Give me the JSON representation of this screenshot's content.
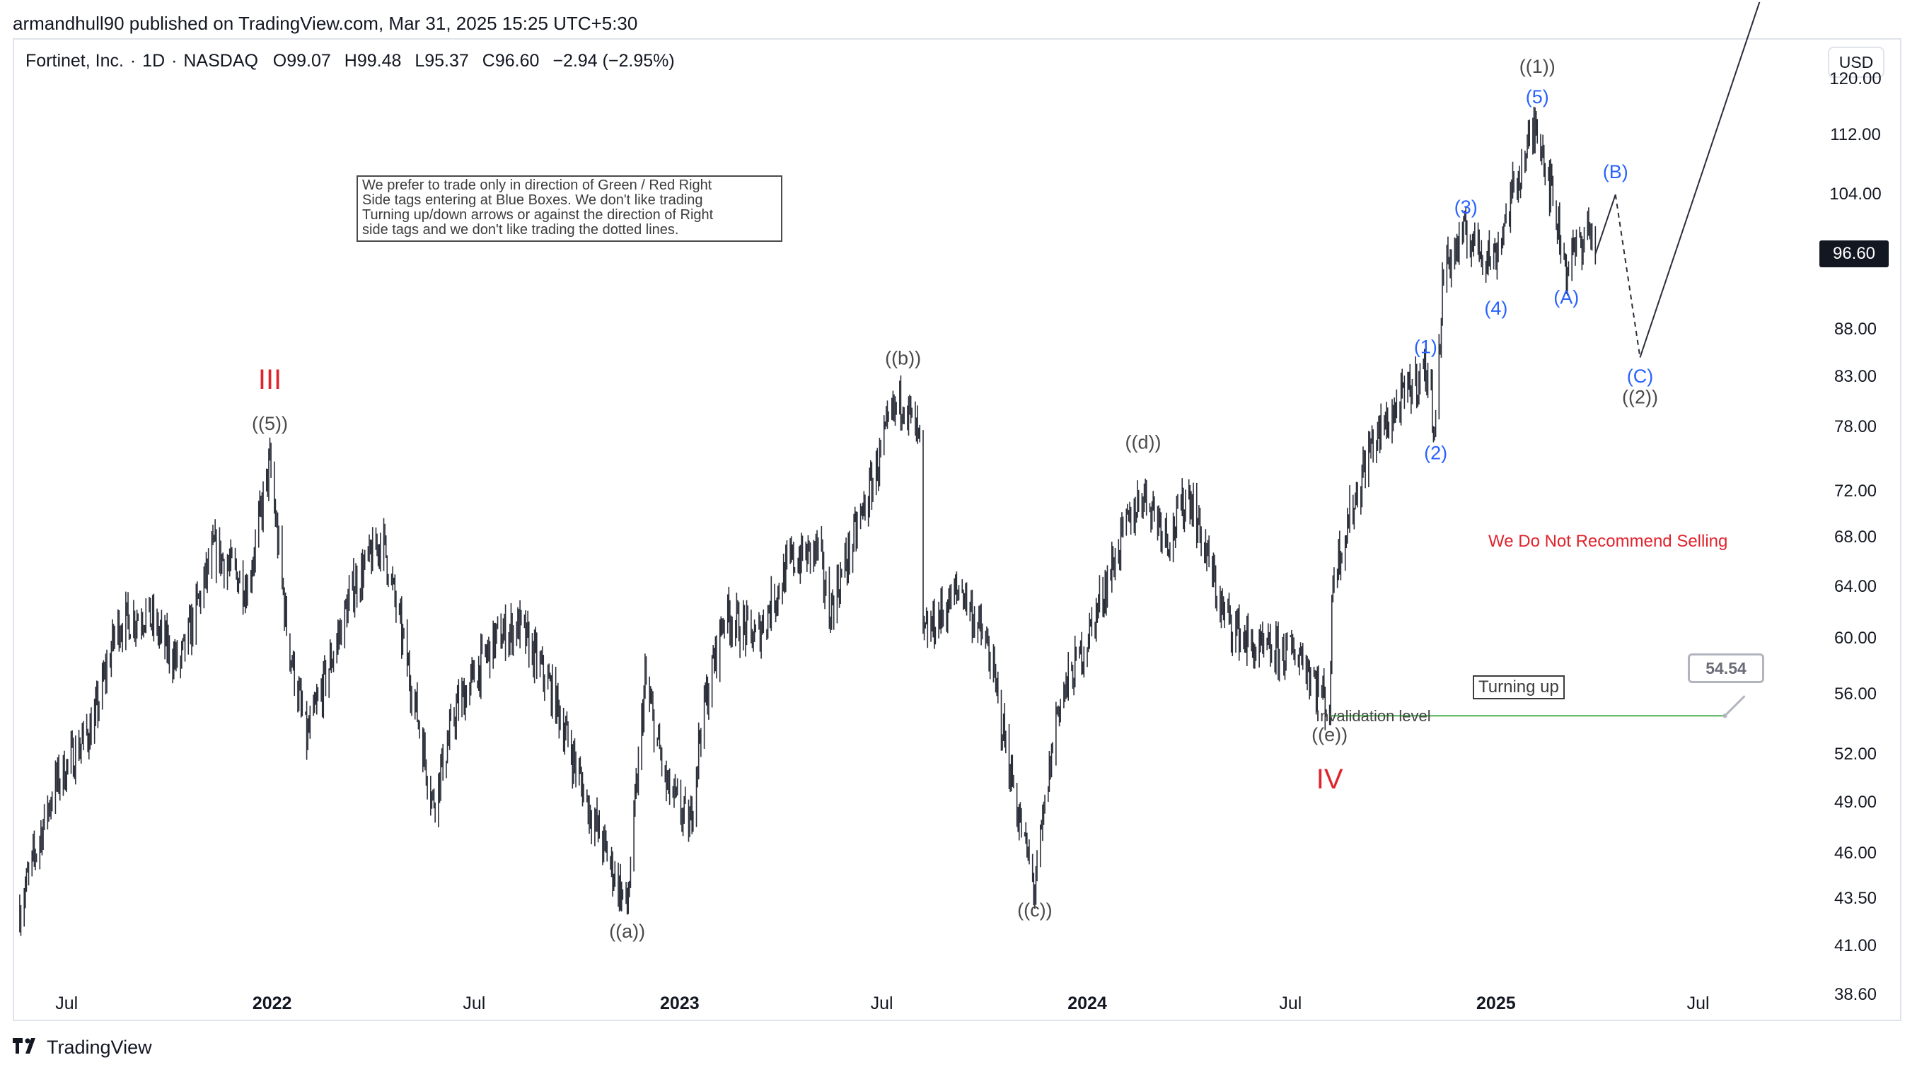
{
  "attribution": "armandhull90 published on TradingView.com, Mar 31, 2025 15:25 UTC+5:30",
  "legend": {
    "symbol": "Fortinet, Inc.",
    "interval": "1D",
    "exchange": "NASDAQ",
    "open_label": "O",
    "open": "99.07",
    "high_label": "H",
    "high": "99.48",
    "low_label": "L",
    "low": "95.37",
    "close_label": "C",
    "close": "96.60",
    "change": "−2.94 (−2.95%)"
  },
  "currency": "USD",
  "last_price": "96.60",
  "brand": "TradingView",
  "note_lines": [
    "We prefer to trade only in direction of Green / Red Right",
    "Side tags entering at Blue Boxes. We don't like trading",
    "Turning up/down arrows or against the direction of Right",
    "side tags and we don't like trading the dotted lines."
  ],
  "recommend_text": "We Do Not Recommend Selling",
  "turning_up": "Turning up",
  "invalidation_text": "Invalidation level",
  "invalidation_value": "54.54",
  "colors": {
    "candles": "#2a2e39",
    "blue_wave": "#2962ff",
    "red_wave": "#e0242e",
    "grey_wave": "#4a4a4a",
    "invalidation_line": "#4caf50"
  },
  "chart_data": {
    "type": "candlestick",
    "title": "Fortinet, Inc. · 1D · NASDAQ",
    "scale": "log",
    "ylim": [
      37.5,
      126
    ],
    "y_ticks": [
      "120.00",
      "112.00",
      "104.00",
      "88.00",
      "83.00",
      "78.00",
      "72.00",
      "68.00",
      "64.00",
      "60.00",
      "56.00",
      "52.00",
      "49.00",
      "46.00",
      "43.50",
      "41.00",
      "38.60"
    ],
    "x_ticks": [
      {
        "label": "Jul",
        "date": "2021-07-01"
      },
      {
        "label": "2022",
        "date": "2022-01-01",
        "bold": true
      },
      {
        "label": "Jul",
        "date": "2022-07-01"
      },
      {
        "label": "2023",
        "date": "2023-01-01",
        "bold": true
      },
      {
        "label": "Jul",
        "date": "2023-07-01"
      },
      {
        "label": "2024",
        "date": "2024-01-01",
        "bold": true
      },
      {
        "label": "Jul",
        "date": "2024-07-01"
      },
      {
        "label": "2025",
        "date": "2025-01-01",
        "bold": true
      },
      {
        "label": "Jul",
        "date": "2025-07-01"
      }
    ],
    "price_path": [
      [
        "2021-05-20",
        43
      ],
      [
        "2021-06-20",
        50
      ],
      [
        "2021-07-25",
        54
      ],
      [
        "2021-08-15",
        61
      ],
      [
        "2021-09-10",
        62
      ],
      [
        "2021-10-10",
        58
      ],
      [
        "2021-11-10",
        67
      ],
      [
        "2021-12-10",
        64
      ],
      [
        "2021-12-30",
        74.5
      ],
      [
        "2022-01-15",
        60
      ],
      [
        "2022-02-01",
        53
      ],
      [
        "2022-03-15",
        64
      ],
      [
        "2022-04-10",
        68
      ],
      [
        "2022-05-10",
        55
      ],
      [
        "2022-05-25",
        49
      ],
      [
        "2022-06-15",
        55
      ],
      [
        "2022-07-20",
        60
      ],
      [
        "2022-08-10",
        61
      ],
      [
        "2022-09-10",
        56
      ],
      [
        "2022-10-10",
        49
      ],
      [
        "2022-11-15",
        43
      ],
      [
        "2022-12-01",
        57
      ],
      [
        "2022-12-20",
        50
      ],
      [
        "2023-01-10",
        47.5
      ],
      [
        "2023-01-20",
        54
      ],
      [
        "2023-02-10",
        62
      ],
      [
        "2023-03-10",
        60
      ],
      [
        "2023-04-10",
        66
      ],
      [
        "2023-05-05",
        67
      ],
      [
        "2023-05-15",
        62
      ],
      [
        "2023-06-20",
        72
      ],
      [
        "2023-07-10",
        79
      ],
      [
        "2023-07-20",
        81
      ],
      [
        "2023-08-05",
        76
      ],
      [
        "2023-08-07",
        60
      ],
      [
        "2023-09-10",
        64
      ],
      [
        "2023-10-05",
        59
      ],
      [
        "2023-11-01",
        48
      ],
      [
        "2023-11-15",
        44
      ],
      [
        "2023-12-05",
        55
      ],
      [
        "2024-01-01",
        60
      ],
      [
        "2024-02-01",
        68
      ],
      [
        "2024-02-20",
        72
      ],
      [
        "2024-03-15",
        68
      ],
      [
        "2024-04-01",
        72
      ],
      [
        "2024-05-01",
        62
      ],
      [
        "2024-06-01",
        59
      ],
      [
        "2024-07-10",
        59
      ],
      [
        "2024-08-05",
        55
      ],
      [
        "2024-08-08",
        65
      ],
      [
        "2024-09-10",
        76
      ],
      [
        "2024-10-05",
        80
      ],
      [
        "2024-10-30",
        84
      ],
      [
        "2024-11-08",
        78
      ],
      [
        "2024-11-15",
        95
      ],
      [
        "2024-12-05",
        99
      ],
      [
        "2024-12-30",
        96
      ],
      [
        "2025-01-20",
        106
      ],
      [
        "2025-02-07",
        114
      ],
      [
        "2025-03-05",
        95
      ],
      [
        "2025-03-25",
        100
      ],
      [
        "2025-03-31",
        96.6
      ]
    ],
    "projection": {
      "solid_1": [
        [
          "2025-03-31",
          96.6
        ],
        [
          "2025-04-18",
          104
        ]
      ],
      "dashed": [
        [
          "2025-04-18",
          104
        ],
        [
          "2025-05-10",
          85
        ]
      ],
      "solid_2": [
        [
          "2025-05-10",
          85
        ],
        [
          "2025-08-25",
          132
        ]
      ]
    },
    "invalidation": {
      "from": "2024-08-05",
      "to": "2025-07-25",
      "value": 54.54
    },
    "wave_labels": [
      {
        "text": "III",
        "date": "2021-12-30",
        "price": 82.5,
        "color": "red"
      },
      {
        "text": "((5))",
        "date": "2021-12-30",
        "price": 78.2,
        "color": "grey"
      },
      {
        "text": "((a))",
        "date": "2022-11-15",
        "price": 41.7,
        "color": "grey"
      },
      {
        "text": "((b))",
        "date": "2023-07-20",
        "price": 84.8,
        "color": "grey"
      },
      {
        "text": "((c))",
        "date": "2023-11-15",
        "price": 42.8,
        "color": "grey"
      },
      {
        "text": "((d))",
        "date": "2024-02-20",
        "price": 76.4,
        "color": "grey"
      },
      {
        "text": "((e))",
        "date": "2024-08-05",
        "price": 53.2,
        "color": "grey"
      },
      {
        "text": "IV",
        "date": "2024-08-05",
        "price": 50.3,
        "color": "red"
      },
      {
        "text": "(1)",
        "date": "2024-10-30",
        "price": 86.0,
        "color": "blue"
      },
      {
        "text": "(2)",
        "date": "2024-11-08",
        "price": 75.4,
        "color": "blue"
      },
      {
        "text": "(3)",
        "date": "2024-12-05",
        "price": 102.2,
        "color": "blue"
      },
      {
        "text": "(4)",
        "date": "2025-01-01",
        "price": 90.2,
        "color": "blue"
      },
      {
        "text": "(5)",
        "date": "2025-02-07",
        "price": 117.2,
        "color": "blue"
      },
      {
        "text": "((1))",
        "date": "2025-02-07",
        "price": 121.7,
        "color": "grey"
      },
      {
        "text": "(A)",
        "date": "2025-03-05",
        "price": 91.4,
        "color": "blue"
      },
      {
        "text": "(B)",
        "date": "2025-04-18",
        "price": 106.8,
        "color": "blue"
      },
      {
        "text": "(C)",
        "date": "2025-05-10",
        "price": 82.9,
        "color": "blue"
      },
      {
        "text": "((2))",
        "date": "2025-05-10",
        "price": 80.8,
        "color": "grey"
      }
    ]
  }
}
